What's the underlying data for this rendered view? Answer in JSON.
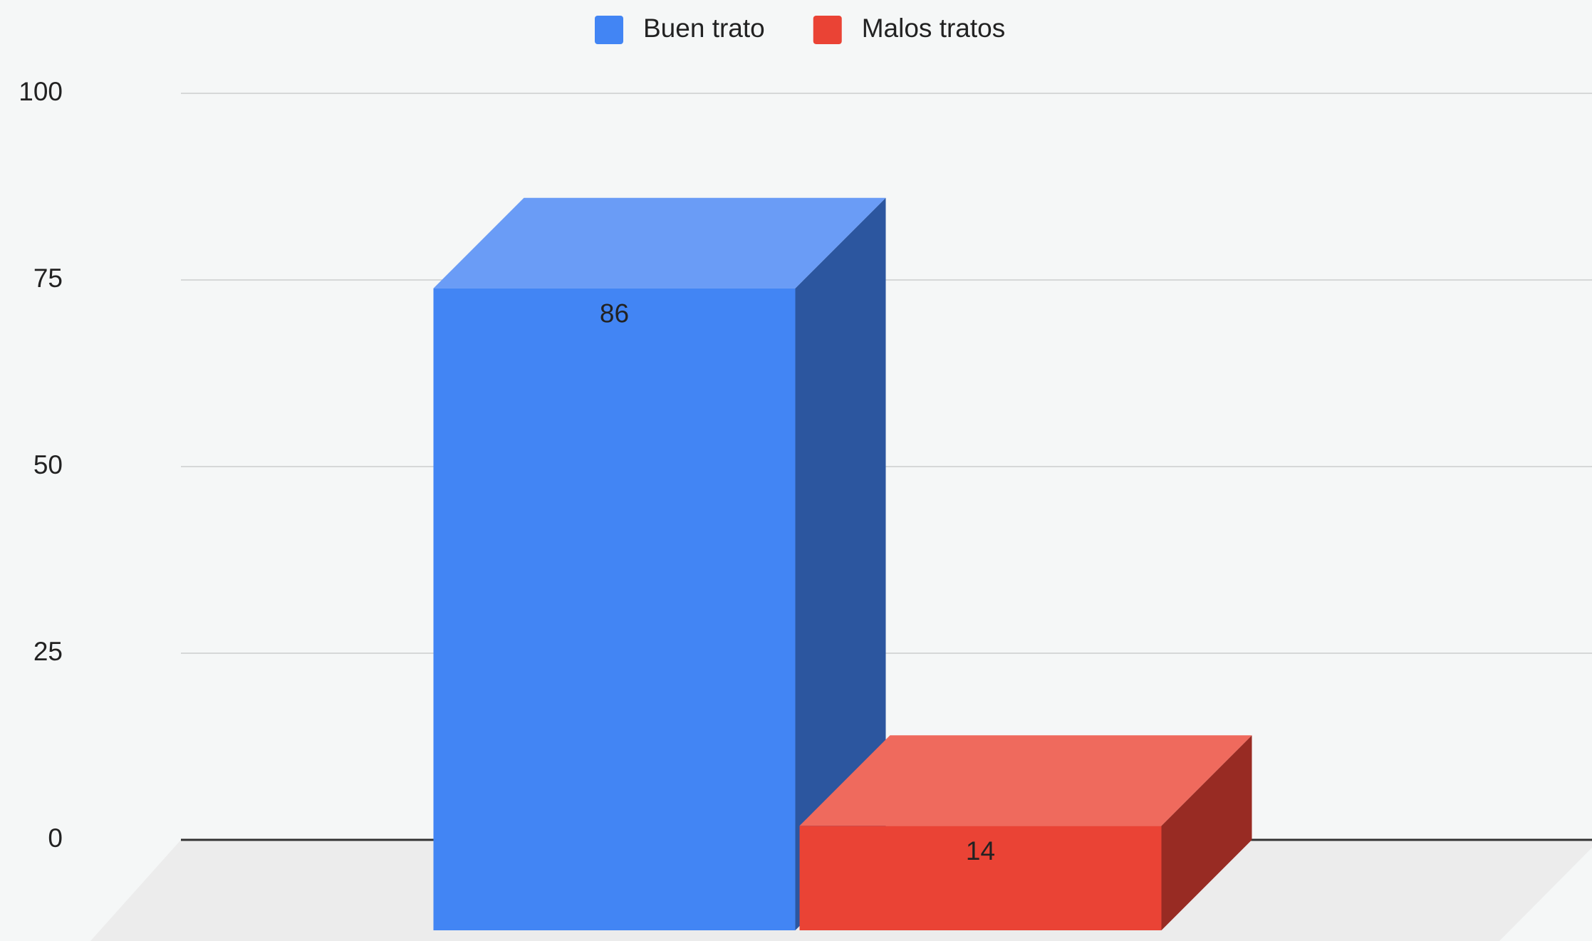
{
  "chart_data": {
    "type": "bar3d",
    "categories": [
      null
    ],
    "series": [
      {
        "name": "Buen trato",
        "color": "#4285f4",
        "top_color": "#6a9cf6",
        "side_color": "#2c569f",
        "values": [
          86
        ]
      },
      {
        "name": "Malos tratos",
        "color": "#ea4335",
        "top_color": "#ef6a5d",
        "side_color": "#982b23",
        "values": [
          14
        ]
      }
    ],
    "ylim": [
      0,
      100
    ],
    "yticks": [
      0,
      25,
      50,
      75,
      100
    ],
    "grid": true,
    "legend": "top",
    "data_labels": true
  }
}
